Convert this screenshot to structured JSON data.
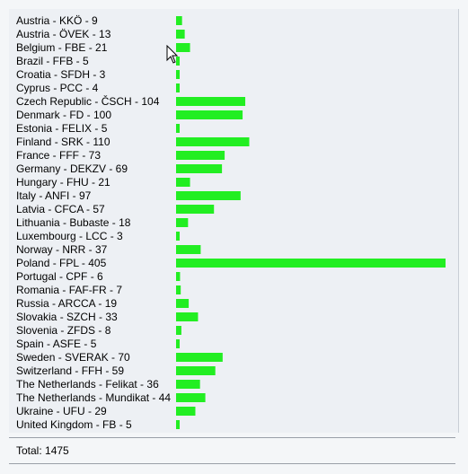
{
  "chart_data": {
    "type": "bar",
    "orientation": "horizontal",
    "categories": [
      "Austria - KKÖ - 9",
      "Austria - ÖVEK - 13",
      "Belgium - FBE - 21",
      "Brazil - FFB - 5",
      "Croatia - SFDH - 3",
      "Cyprus - PCC - 4",
      "Czech Republic - ČSCH - 104",
      "Denmark - FD - 100",
      "Estonia - FELIX - 5",
      "Finland - SRK - 110",
      "France - FFF - 73",
      "Germany - DEKZV - 69",
      "Hungary - FHU - 21",
      "Italy - ANFI - 97",
      "Latvia - CFCA - 57",
      "Lithuania - Bubaste - 18",
      "Luxembourg - LCC - 3",
      "Norway - NRR - 37",
      "Poland - FPL - 405",
      "Portugal - CPF - 6",
      "Romania - FAF-FR - 7",
      "Russia - ARCCA - 19",
      "Slovakia - SZCH - 33",
      "Slovenia - ZFDS - 8",
      "Spain - ASFE - 5",
      "Sweden - SVERAK - 70",
      "Switzerland - FFH - 59",
      "The Netherlands - Felikat - 36",
      "The Netherlands - Mundikat - 44",
      "Ukraine - UFU - 29",
      "United Kingdom - FB - 5"
    ],
    "values": [
      9,
      13,
      21,
      5,
      3,
      4,
      104,
      100,
      5,
      110,
      73,
      69,
      21,
      97,
      57,
      18,
      3,
      37,
      405,
      6,
      7,
      19,
      33,
      8,
      5,
      70,
      59,
      36,
      44,
      29,
      5
    ],
    "xlim": [
      0,
      405
    ],
    "bar_color": "#22ee22",
    "grid": false,
    "legend": "none"
  },
  "total_label": "Total: 1475",
  "icons": {
    "cursor": "mouse-pointer-icon"
  }
}
